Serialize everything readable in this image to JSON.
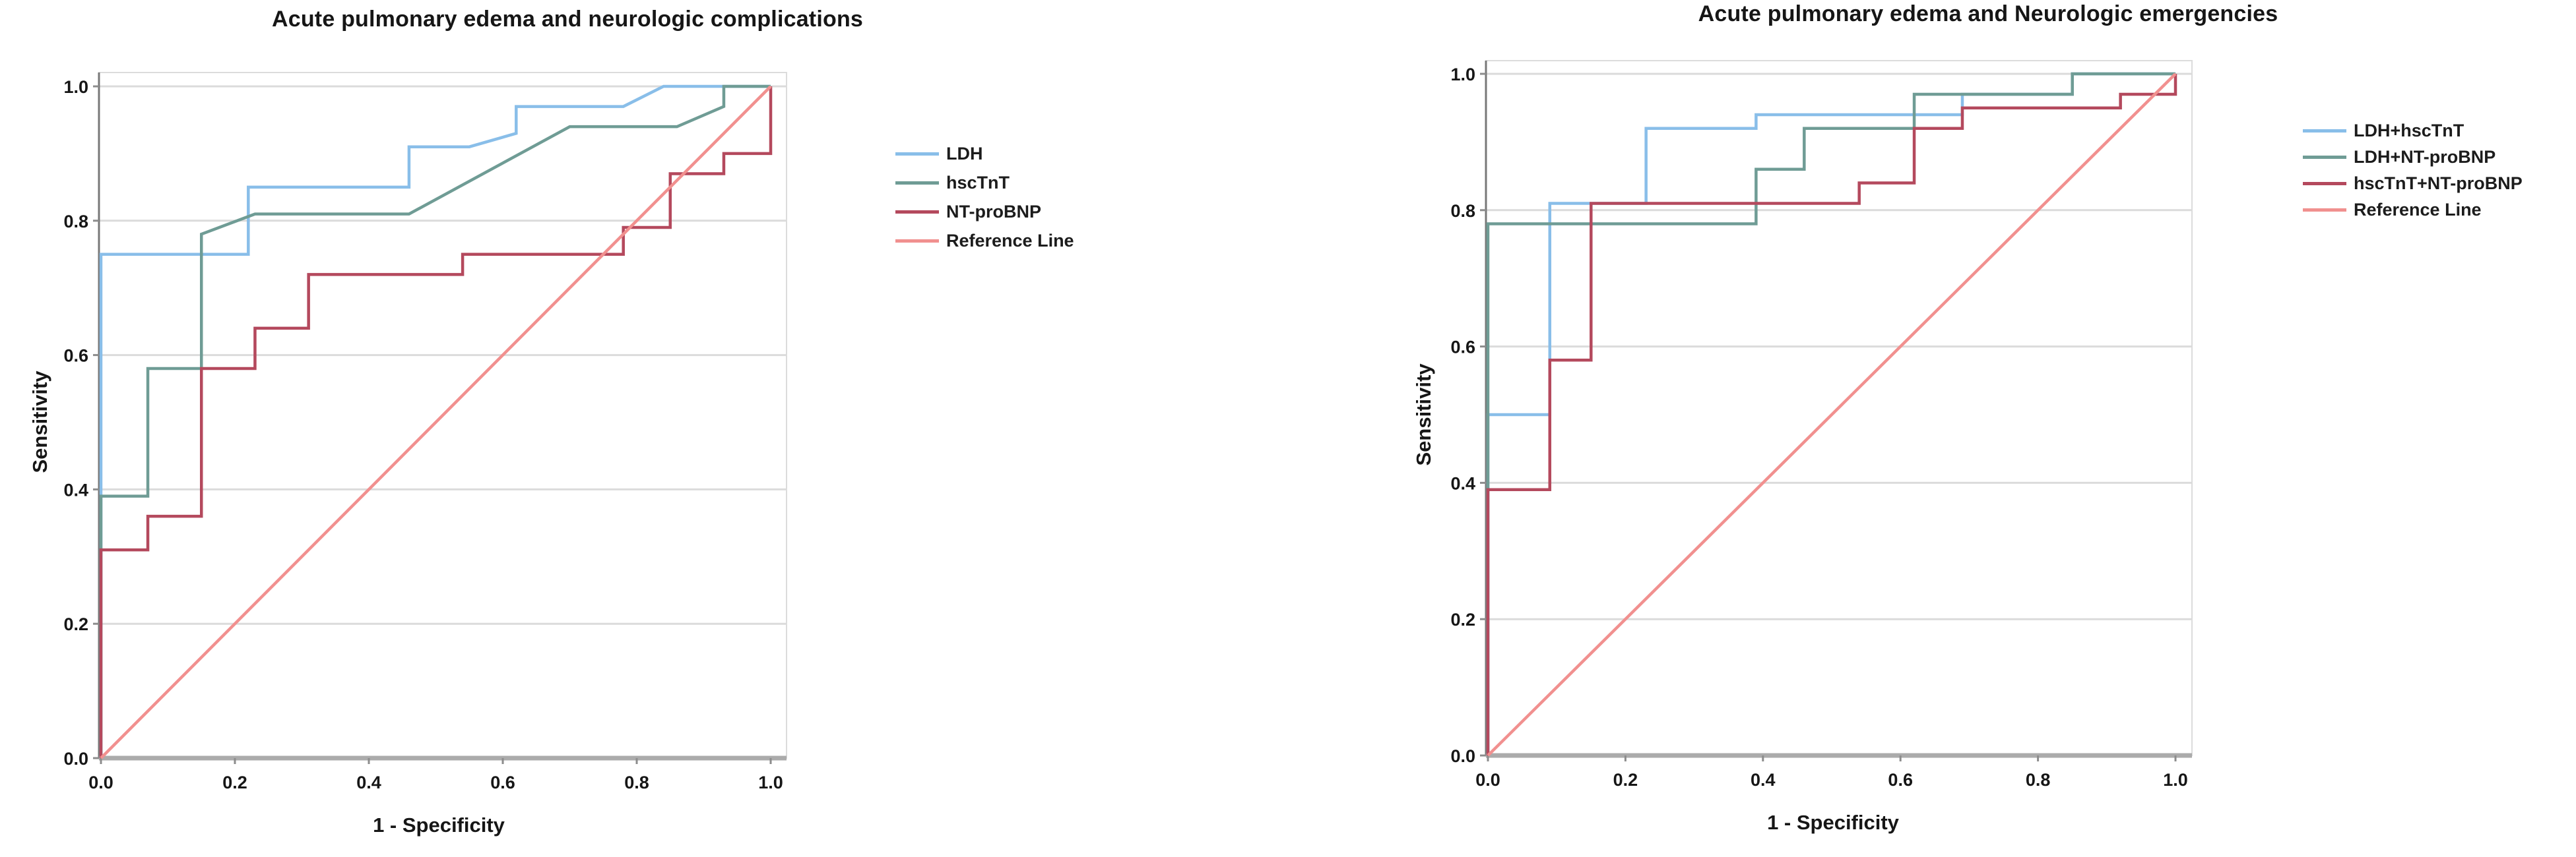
{
  "figure": {
    "background": "#ffffff",
    "text_color": "#161616",
    "grid_color": "#dbdbdb",
    "frame_color": "#dcdcdc",
    "x_axis_color": "#ababab",
    "y_axis_color": "#787878",
    "tick_color": "#8c8c8c"
  },
  "chart_data": [
    {
      "type": "line",
      "subtype": "roc-step-curves",
      "title": "Acute pulmonary edema and neurologic complications",
      "xlabel": "1 - Specificity",
      "ylabel": "Sensitivity",
      "xlim": [
        0,
        1
      ],
      "ylim": [
        0,
        1
      ],
      "xtick_values": [
        0,
        0.2,
        0.4,
        0.6,
        0.8,
        1.0
      ],
      "xtick_labels": [
        "0.0",
        "0.2",
        "0.4",
        "0.6",
        "0.8",
        "1.0"
      ],
      "ytick_values": [
        0,
        0.2,
        0.4,
        0.6,
        0.8,
        1.0
      ],
      "ytick_labels": [
        "0.0",
        "0.2",
        "0.4",
        "0.6",
        "0.8",
        "1.0"
      ],
      "grid": "horizontal",
      "legend_position": "right",
      "series": [
        {
          "name": "LDH",
          "color": "#89BEE9",
          "points": [
            [
              0,
              0
            ],
            [
              0,
              0.75
            ],
            [
              0.22,
              0.75
            ],
            [
              0.22,
              0.85
            ],
            [
              0.46,
              0.85
            ],
            [
              0.46,
              0.91
            ],
            [
              0.55,
              0.91
            ],
            [
              0.62,
              0.93
            ],
            [
              0.62,
              0.97
            ],
            [
              0.78,
              0.97
            ],
            [
              0.84,
              1
            ],
            [
              1,
              1
            ]
          ]
        },
        {
          "name": "hscTnT",
          "color": "#6F9C95",
          "points": [
            [
              0,
              0
            ],
            [
              0,
              0.39
            ],
            [
              0.07,
              0.39
            ],
            [
              0.07,
              0.58
            ],
            [
              0.15,
              0.58
            ],
            [
              0.15,
              0.78
            ],
            [
              0.23,
              0.81
            ],
            [
              0.46,
              0.81
            ],
            [
              0.7,
              0.94
            ],
            [
              0.86,
              0.94
            ],
            [
              0.93,
              0.97
            ],
            [
              0.93,
              1
            ],
            [
              1,
              1
            ]
          ]
        },
        {
          "name": "NT-proBNP",
          "color": "#B4495D",
          "points": [
            [
              0,
              0
            ],
            [
              0,
              0.31
            ],
            [
              0.07,
              0.31
            ],
            [
              0.07,
              0.36
            ],
            [
              0.15,
              0.36
            ],
            [
              0.15,
              0.58
            ],
            [
              0.23,
              0.58
            ],
            [
              0.23,
              0.64
            ],
            [
              0.31,
              0.64
            ],
            [
              0.31,
              0.72
            ],
            [
              0.54,
              0.72
            ],
            [
              0.54,
              0.75
            ],
            [
              0.78,
              0.75
            ],
            [
              0.78,
              0.79
            ],
            [
              0.85,
              0.79
            ],
            [
              0.85,
              0.87
            ],
            [
              0.93,
              0.87
            ],
            [
              0.93,
              0.9
            ],
            [
              1,
              0.9
            ],
            [
              1,
              1
            ]
          ]
        },
        {
          "name": "Reference Line",
          "color": "#F1908F",
          "points": [
            [
              0,
              0
            ],
            [
              1,
              1
            ]
          ]
        }
      ]
    },
    {
      "type": "line",
      "subtype": "roc-step-curves",
      "title": "Acute pulmonary edema and Neurologic emergencies",
      "xlabel": "1 - Specificity",
      "ylabel": "Sensitivity",
      "xlim": [
        0,
        1
      ],
      "ylim": [
        0,
        1
      ],
      "xtick_values": [
        0,
        0.2,
        0.4,
        0.6,
        0.8,
        1.0
      ],
      "xtick_labels": [
        "0.0",
        "0.2",
        "0.4",
        "0.6",
        "0.8",
        "1.0"
      ],
      "ytick_values": [
        0,
        0.2,
        0.4,
        0.6,
        0.8,
        1.0
      ],
      "ytick_labels": [
        "0.0",
        "0.2",
        "0.4",
        "0.6",
        "0.8",
        "1.0"
      ],
      "grid": "horizontal",
      "legend_position": "right",
      "series": [
        {
          "name": "LDH+hscTnT",
          "color": "#89BEE9",
          "points": [
            [
              0,
              0
            ],
            [
              0,
              0.5
            ],
            [
              0.09,
              0.5
            ],
            [
              0.09,
              0.81
            ],
            [
              0.23,
              0.81
            ],
            [
              0.23,
              0.92
            ],
            [
              0.39,
              0.92
            ],
            [
              0.39,
              0.94
            ],
            [
              0.69,
              0.94
            ],
            [
              0.69,
              0.97
            ],
            [
              0.85,
              0.97
            ],
            [
              0.85,
              1
            ],
            [
              1,
              1
            ]
          ]
        },
        {
          "name": "LDH+NT-proBNP",
          "color": "#6F9C95",
          "points": [
            [
              0,
              0
            ],
            [
              0,
              0.78
            ],
            [
              0.39,
              0.78
            ],
            [
              0.39,
              0.86
            ],
            [
              0.46,
              0.86
            ],
            [
              0.46,
              0.92
            ],
            [
              0.62,
              0.92
            ],
            [
              0.62,
              0.97
            ],
            [
              0.85,
              0.97
            ],
            [
              0.85,
              1
            ],
            [
              1,
              1
            ]
          ]
        },
        {
          "name": "hscTnT+NT-proBNP",
          "color": "#B4495D",
          "points": [
            [
              0,
              0
            ],
            [
              0,
              0.39
            ],
            [
              0.09,
              0.39
            ],
            [
              0.09,
              0.58
            ],
            [
              0.15,
              0.58
            ],
            [
              0.15,
              0.81
            ],
            [
              0.54,
              0.81
            ],
            [
              0.54,
              0.84
            ],
            [
              0.62,
              0.84
            ],
            [
              0.62,
              0.92
            ],
            [
              0.69,
              0.92
            ],
            [
              0.69,
              0.95
            ],
            [
              0.92,
              0.95
            ],
            [
              0.92,
              0.97
            ],
            [
              1,
              0.97
            ],
            [
              1,
              1
            ]
          ]
        },
        {
          "name": "Reference Line",
          "color": "#F1908F",
          "points": [
            [
              0,
              0
            ],
            [
              1,
              1
            ]
          ]
        }
      ]
    }
  ]
}
